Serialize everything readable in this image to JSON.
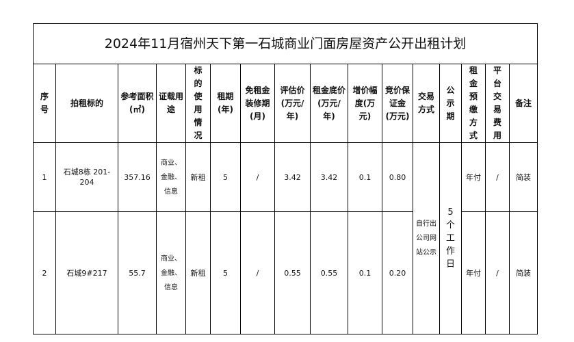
{
  "title": "2024年11月宿州天下第一石城商业门面房屋资产公开出租计划",
  "headers": [
    "序号",
    "拍租标的",
    "参考面积(㎡)",
    "证载用途",
    "标的使用情况",
    "租期(年)",
    "免租金装修期(月)",
    "评估价(万元/年)",
    "租金底价(万元/年)",
    "增价幅度(万元)",
    "竞价保证金(万元)",
    "交易方式",
    "公示期",
    "租金预缴方式",
    "平台交易费用",
    "备注"
  ],
  "rows": [
    {
      "no": "1",
      "target": "石城8栋 201-204",
      "area": "357.16",
      "use": "商业、金融、信息",
      "status": "新租",
      "term": "5",
      "free": "/",
      "appraisal": "3.42",
      "reserve": "3.42",
      "increment": "0.1",
      "deposit": "0.80",
      "payment": "年付",
      "fee": "/",
      "note": "简装"
    },
    {
      "no": "2",
      "target": "石城9#217",
      "area": "55.7",
      "use": "商业、金融、信息",
      "status": "新租",
      "term": "5",
      "free": "/",
      "appraisal": "0.55",
      "reserve": "0.55",
      "increment": "0.1",
      "deposit": "0.20",
      "payment": "年付",
      "fee": "/",
      "note": "简装"
    }
  ],
  "shared": {
    "method": "自行出公司网站公示",
    "period": "5个工作日"
  }
}
